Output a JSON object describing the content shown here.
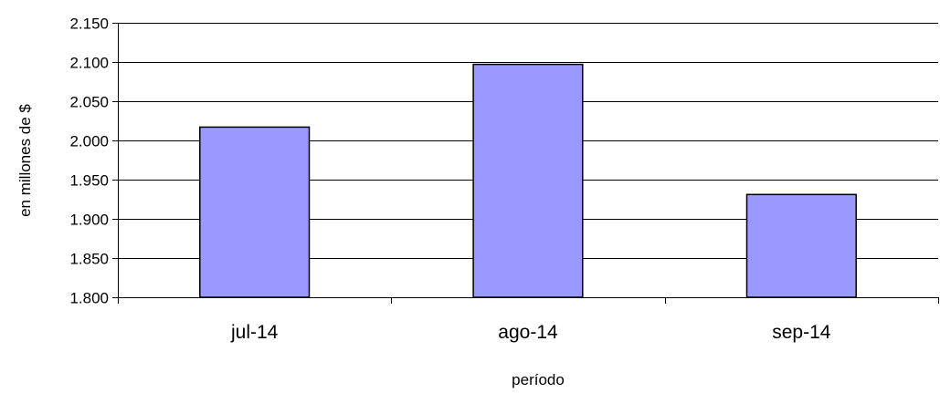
{
  "chart_data": {
    "type": "bar",
    "categories": [
      "jul-14",
      "ago-14",
      "sep-14"
    ],
    "values": [
      2017,
      2097,
      1931
    ],
    "title": "",
    "xlabel": "período",
    "ylabel": "en millones de $",
    "ylim": [
      1800,
      2150
    ],
    "y_ticks": [
      1800,
      1850,
      1900,
      1950,
      2000,
      2050,
      2100,
      2150
    ],
    "y_tick_labels": [
      "1.800",
      "1.850",
      "1.900",
      "1.950",
      "2.000",
      "2.050",
      "2.100",
      "2.150"
    ],
    "grid": true,
    "legend": "none",
    "colors": {
      "bar_fill": "#9999ff",
      "bar_stroke": "#000000",
      "grid": "#000000"
    }
  }
}
